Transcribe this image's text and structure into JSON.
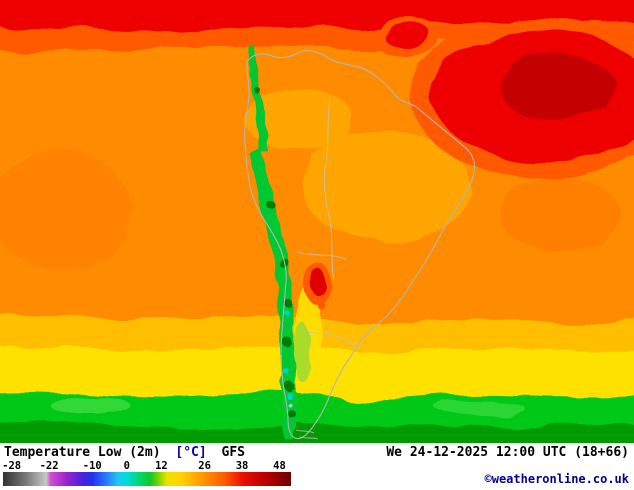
{
  "footer": {
    "title_label": "Temperature Low (2m)",
    "title_unit": "[°C]",
    "title_model": "GFS",
    "datetime": "We 24-12-2025 12:00 UTC (18+66)",
    "copyright": "©weatheronline.co.uk"
  },
  "scale": {
    "unit": "°C",
    "labels": [
      {
        "text": "-28",
        "pos": 3
      },
      {
        "text": "-22",
        "pos": 16
      },
      {
        "text": "-10",
        "pos": 31
      },
      {
        "text": "0",
        "pos": 43
      },
      {
        "text": "12",
        "pos": 55
      },
      {
        "text": "26",
        "pos": 70
      },
      {
        "text": "38",
        "pos": 83
      },
      {
        "text": "48",
        "pos": 96
      }
    ],
    "stops": [
      {
        "pos": 0,
        "color": "#323232"
      },
      {
        "pos": 8,
        "color": "#787878"
      },
      {
        "pos": 15,
        "color": "#c8c8c8"
      },
      {
        "pos": 16.5,
        "color": "#d24fd2"
      },
      {
        "pos": 22,
        "color": "#9922cc"
      },
      {
        "pos": 28,
        "color": "#4422dd"
      },
      {
        "pos": 31,
        "color": "#2233ee"
      },
      {
        "pos": 36,
        "color": "#2a7bff"
      },
      {
        "pos": 40,
        "color": "#1ec8f0"
      },
      {
        "pos": 43,
        "color": "#00dcdc"
      },
      {
        "pos": 47,
        "color": "#00d878"
      },
      {
        "pos": 51,
        "color": "#10c828"
      },
      {
        "pos": 54,
        "color": "#7cd400"
      },
      {
        "pos": 57,
        "color": "#f0e000"
      },
      {
        "pos": 62,
        "color": "#ffd200"
      },
      {
        "pos": 70,
        "color": "#ff9100"
      },
      {
        "pos": 77,
        "color": "#ff5a00"
      },
      {
        "pos": 83,
        "color": "#ed1000"
      },
      {
        "pos": 90,
        "color": "#c30000"
      },
      {
        "pos": 96,
        "color": "#8f0000"
      },
      {
        "pos": 100,
        "color": "#730000"
      }
    ]
  },
  "map": {
    "region": "South America",
    "palette": {
      "hot": "#ee0000",
      "very_warm": "#ff5a00",
      "warm": "#ff8c00",
      "mild": "#ffbe00",
      "cool": "#ffe100",
      "cold": "#00c814",
      "very_cold": "#00d2d2",
      "coastline": "#b4b4b4"
    }
  }
}
